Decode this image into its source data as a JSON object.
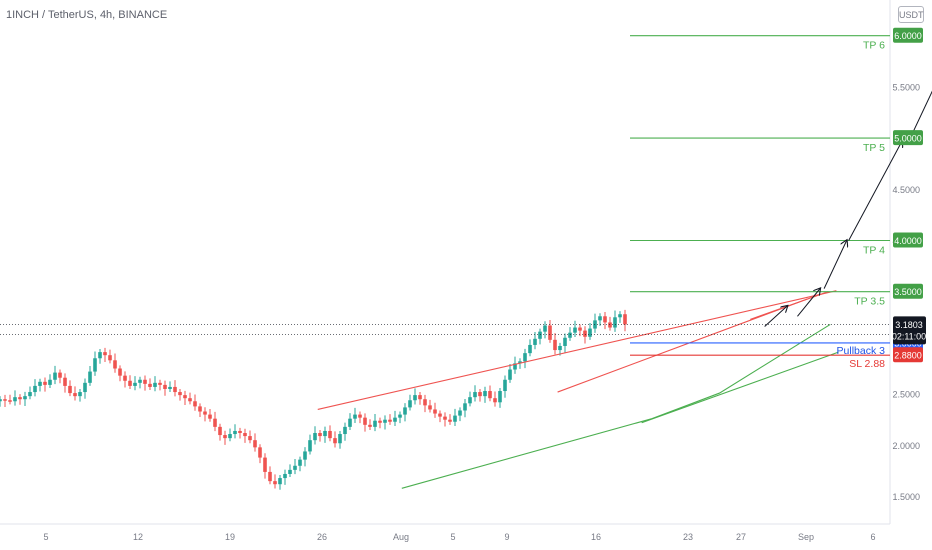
{
  "header": {
    "title": "1INCH / TetherUS, 4h, BINANCE",
    "currency": "USDT"
  },
  "colors": {
    "up": "#26a69a",
    "down": "#ef5350",
    "tp_line": "#4caf50",
    "sl_line": "#e53935",
    "pullback_line": "#2962ff",
    "support_line": "#4caf50",
    "resistance_line": "#ef5350",
    "arrow": "#131722"
  },
  "price_scale": {
    "ticks": [
      "1.5000",
      "2.0000",
      "2.5000",
      "3.0000",
      "3.5000",
      "4.0000",
      "4.5000",
      "5.0000",
      "5.5000",
      "6.0000"
    ],
    "current_price": "3.1803",
    "countdown": "02:11:00"
  },
  "time_axis": {
    "labels": [
      "5",
      "12",
      "19",
      "26",
      "Aug",
      "5",
      "9",
      "16",
      "23",
      "27",
      "Sep",
      "6"
    ]
  },
  "levels": [
    {
      "label": "TP 6",
      "price": 6.0,
      "price_text": "6.0000",
      "kind": "tp"
    },
    {
      "label": "TP 5",
      "price": 5.0,
      "price_text": "5.0000",
      "kind": "tp"
    },
    {
      "label": "TP 4",
      "price": 4.0,
      "price_text": "4.0000",
      "kind": "tp"
    },
    {
      "label": "TP 3.5",
      "price": 3.5,
      "price_text": "3.5000",
      "kind": "tp"
    },
    {
      "label": "Pullback 3",
      "price": 3.0,
      "price_text": "3.0000",
      "kind": "pullback"
    },
    {
      "label": "SL 2.88",
      "price": 2.88,
      "price_text": "2.8800",
      "kind": "sl"
    }
  ],
  "chart_data": {
    "type": "candlestick",
    "ylim": [
      1.5,
      6.0
    ],
    "close_series": [
      2.45,
      2.44,
      2.43,
      2.47,
      2.45,
      2.48,
      2.52,
      2.58,
      2.62,
      2.59,
      2.64,
      2.71,
      2.66,
      2.58,
      2.51,
      2.48,
      2.52,
      2.61,
      2.72,
      2.85,
      2.91,
      2.88,
      2.83,
      2.75,
      2.68,
      2.63,
      2.58,
      2.61,
      2.64,
      2.6,
      2.57,
      2.61,
      2.59,
      2.55,
      2.57,
      2.52,
      2.49,
      2.46,
      2.43,
      2.38,
      2.33,
      2.3,
      2.26,
      2.18,
      2.1,
      2.07,
      2.11,
      2.14,
      2.12,
      2.09,
      2.05,
      1.98,
      1.88,
      1.74,
      1.65,
      1.62,
      1.68,
      1.72,
      1.76,
      1.8,
      1.86,
      1.94,
      2.05,
      2.12,
      2.09,
      2.14,
      2.07,
      2.02,
      2.11,
      2.18,
      2.26,
      2.3,
      2.27,
      2.2,
      2.18,
      2.24,
      2.22,
      2.25,
      2.23,
      2.27,
      2.3,
      2.37,
      2.44,
      2.49,
      2.45,
      2.39,
      2.35,
      2.31,
      2.28,
      2.25,
      2.23,
      2.29,
      2.34,
      2.41,
      2.47,
      2.52,
      2.48,
      2.53,
      2.46,
      2.42,
      2.53,
      2.64,
      2.74,
      2.8,
      2.82,
      2.9,
      2.98,
      3.04,
      3.11,
      3.17,
      3.03,
      2.93,
      2.97,
      3.05,
      3.1,
      3.15,
      3.12,
      3.06,
      3.14,
      3.22,
      3.26,
      3.2,
      3.15,
      3.25,
      3.28,
      3.18
    ],
    "support_lines": [
      [
        [
          19.6,
          1.58
        ],
        [
          31.8,
          2.26
        ],
        [
          35.1,
          2.51
        ],
        [
          40.5,
          3.18
        ]
      ],
      [
        [
          31.3,
          2.22
        ],
        [
          40.9,
          2.91
        ]
      ]
    ],
    "resistance_lines": [
      [
        [
          15.5,
          2.35
        ],
        [
          40.8,
          3.51
        ]
      ],
      [
        [
          27.2,
          2.52
        ],
        [
          39.4,
          3.43
        ]
      ],
      [
        [
          36.6,
          3.23
        ],
        [
          40.4,
          3.5
        ]
      ]
    ],
    "projection_arrows": [
      [
        [
          37.3,
          3.16
        ],
        [
          38.4,
          3.36
        ]
      ],
      [
        [
          38.9,
          3.26
        ],
        [
          40.0,
          3.53
        ]
      ],
      [
        [
          40.2,
          3.53
        ],
        [
          41.3,
          4.0
        ]
      ],
      [
        [
          41.4,
          4.0
        ],
        [
          44.0,
          4.97
        ]
      ],
      [
        [
          44.4,
          5.0
        ],
        [
          46.4,
          5.85
        ]
      ],
      [
        [
          47.0,
          5.98
        ],
        [
          47.4,
          6.13
        ]
      ]
    ]
  }
}
